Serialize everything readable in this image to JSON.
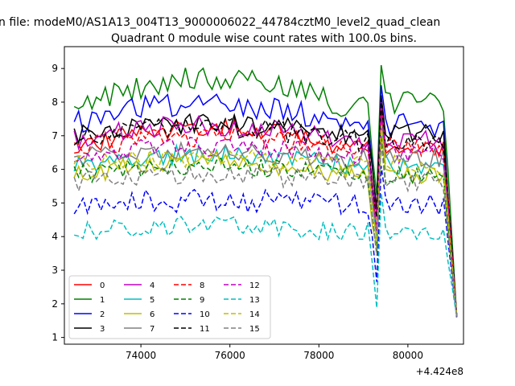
{
  "header": {
    "suptitle": "n file: modeM0/AS1A13_004T13_9000006022_44784cztM0_level2_quad_clean",
    "title": "Quadrant 0 module wise count rates with 100.0s bins."
  },
  "chart_data": {
    "type": "line",
    "title": "Quadrant 0 module wise count rates with 100.0s bins.",
    "xlabel": "",
    "ylabel": "",
    "x_offset_label": "+4.424e8",
    "xlim": [
      72280,
      81250
    ],
    "ylim": [
      0.8,
      9.65
    ],
    "x_ticks": [
      74000,
      76000,
      78000,
      80000
    ],
    "x_tick_labels": [
      "74000",
      "76000",
      "78000",
      "80000"
    ],
    "y_ticks": [
      1,
      2,
      3,
      4,
      5,
      6,
      7,
      8,
      9
    ],
    "y_tick_labels": [
      "1",
      "2",
      "3",
      "4",
      "5",
      "6",
      "7",
      "8",
      "9"
    ],
    "grid": false,
    "legend_position": "lower-left",
    "x_start": 72500,
    "x_step": 100,
    "series": [
      {
        "name": "0",
        "color": "#ff0000",
        "dash": "solid",
        "base": 6.9,
        "slope": 0.1,
        "noise": 0.28,
        "seed": 11
      },
      {
        "name": "1",
        "color": "#008000",
        "dash": "solid",
        "base": 8.2,
        "slope": 0.12,
        "noise": 0.38,
        "seed": 12
      },
      {
        "name": "2",
        "color": "#0000ff",
        "dash": "solid",
        "base": 7.6,
        "slope": 0.1,
        "noise": 0.38,
        "seed": 13
      },
      {
        "name": "3",
        "color": "#000000",
        "dash": "solid",
        "base": 7.3,
        "slope": 0.05,
        "noise": 0.3,
        "seed": 14
      },
      {
        "name": "4",
        "color": "#bf00bf",
        "dash": "solid",
        "base": 7.1,
        "slope": 0.08,
        "noise": 0.32,
        "seed": 15
      },
      {
        "name": "5",
        "color": "#00bfbf",
        "dash": "solid",
        "base": 6.4,
        "slope": 0.05,
        "noise": 0.3,
        "seed": 16
      },
      {
        "name": "6",
        "color": "#bfbf00",
        "dash": "solid",
        "base": 6.1,
        "slope": 0.06,
        "noise": 0.3,
        "seed": 17
      },
      {
        "name": "7",
        "color": "#808080",
        "dash": "solid",
        "base": 6.6,
        "slope": 0.03,
        "noise": 0.3,
        "seed": 18
      },
      {
        "name": "8",
        "color": "#ff0000",
        "dash": "dashed",
        "base": 6.9,
        "slope": 0.05,
        "noise": 0.3,
        "seed": 19
      },
      {
        "name": "9",
        "color": "#008000",
        "dash": "dashed",
        "base": 6.1,
        "slope": 0.04,
        "noise": 0.28,
        "seed": 20
      },
      {
        "name": "10",
        "color": "#0000ff",
        "dash": "dashed",
        "base": 5.2,
        "slope": 0.02,
        "noise": 0.35,
        "seed": 21
      },
      {
        "name": "11",
        "color": "#000000",
        "dash": "dashed",
        "base": 7.1,
        "slope": 0.07,
        "noise": 0.32,
        "seed": 22
      },
      {
        "name": "12",
        "color": "#bf00bf",
        "dash": "dashed",
        "base": 6.7,
        "slope": 0.04,
        "noise": 0.3,
        "seed": 23
      },
      {
        "name": "13",
        "color": "#00bfbf",
        "dash": "dashed",
        "base": 4.4,
        "slope": 0.03,
        "noise": 0.28,
        "seed": 24
      },
      {
        "name": "14",
        "color": "#bfbf00",
        "dash": "dashed",
        "base": 6.4,
        "slope": 0.03,
        "noise": 0.28,
        "seed": 25
      },
      {
        "name": "15",
        "color": "#808080",
        "dash": "dashed",
        "base": 5.9,
        "slope": 0.03,
        "noise": 0.3,
        "seed": 26
      }
    ]
  }
}
